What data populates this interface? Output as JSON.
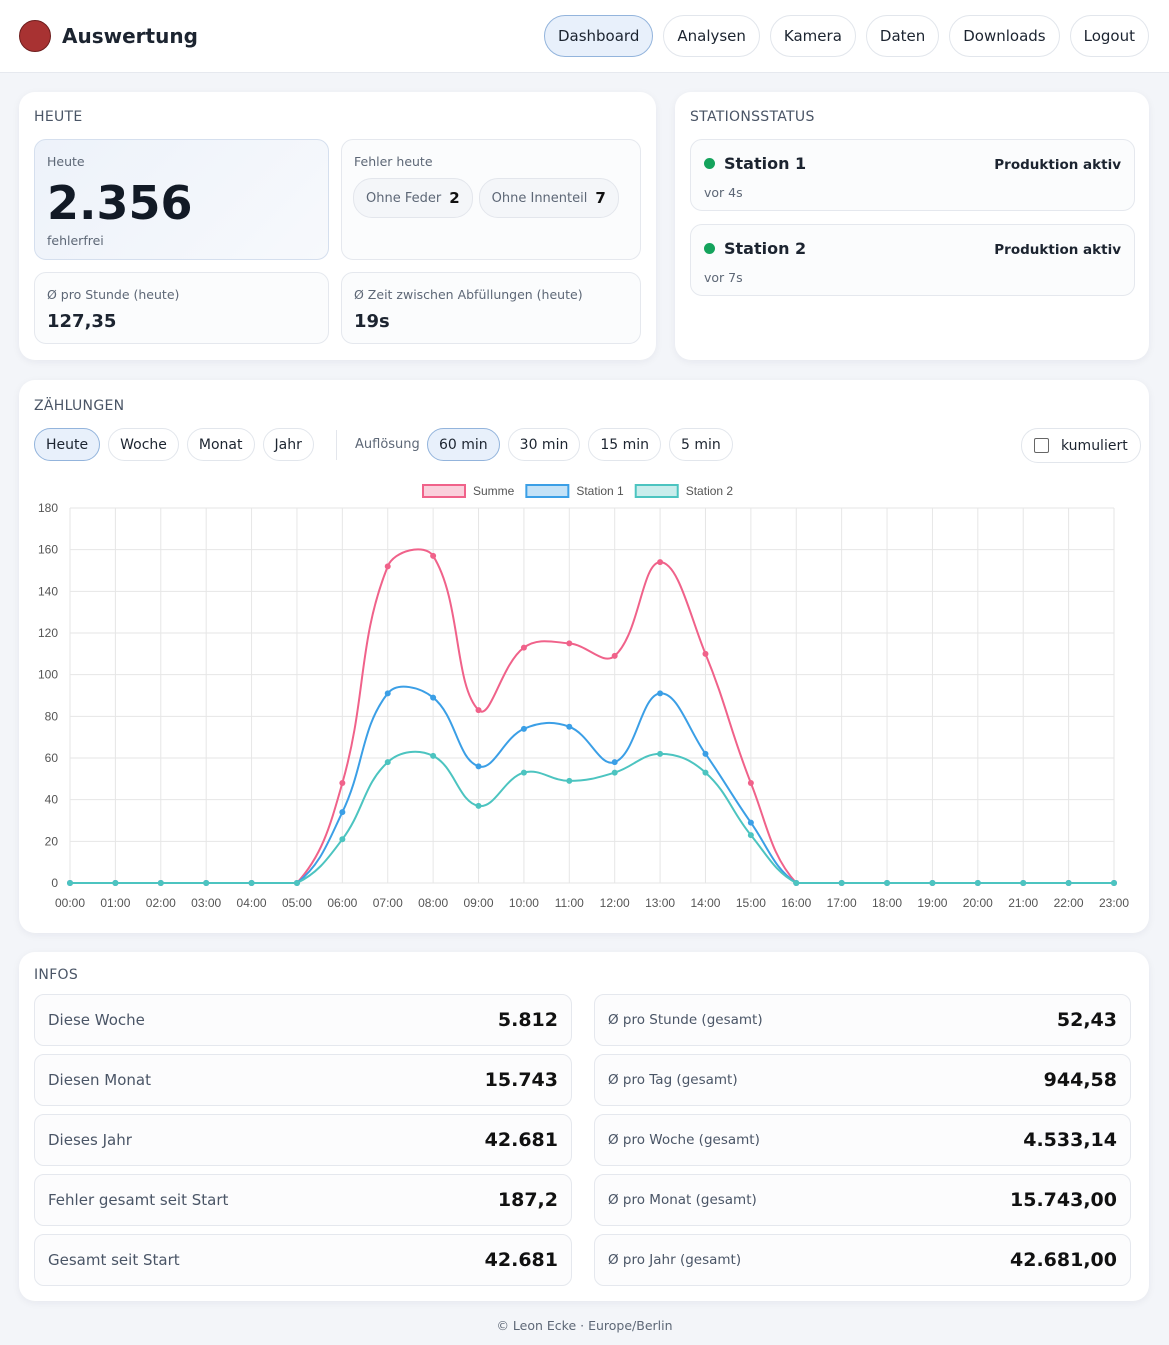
{
  "header": {
    "brand": "Auswertung",
    "nav": [
      "Dashboard",
      "Analysen",
      "Kamera",
      "Daten",
      "Downloads",
      "Logout"
    ]
  },
  "today": {
    "title": "HEUTE",
    "main": {
      "label": "Heute",
      "value": "2.356",
      "sub": "fehlerfrei"
    },
    "errors": {
      "label": "Fehler heute",
      "items": [
        {
          "name": "Ohne Feder",
          "count": 2
        },
        {
          "name": "Ohne Innenteil",
          "count": 7
        }
      ]
    },
    "per_hour": {
      "label": "Ø pro Stunde (heute)",
      "value": "127,35"
    },
    "interval": {
      "label": "Ø Zeit zwischen Abfüllungen (heute)",
      "value": "19s"
    }
  },
  "stations": {
    "title": "STATIONSSTATUS",
    "items": [
      {
        "name": "Station 1",
        "status": "Produktion aktiv",
        "seen": "vor 4s"
      },
      {
        "name": "Station 2",
        "status": "Produktion aktiv",
        "seen": "vor 7s"
      }
    ]
  },
  "counts": {
    "title": "ZÄHLUNGEN",
    "ranges": [
      "Heute",
      "Woche",
      "Monat",
      "Jahr"
    ],
    "resolution_label": "Auflösung",
    "resolutions": [
      "60 min",
      "30 min",
      "15 min",
      "5 min"
    ],
    "cumulative_label": "kumuliert"
  },
  "chart_data": {
    "type": "line",
    "categories": [
      "00:00",
      "01:00",
      "02:00",
      "03:00",
      "04:00",
      "05:00",
      "06:00",
      "07:00",
      "08:00",
      "09:00",
      "10:00",
      "11:00",
      "12:00",
      "13:00",
      "14:00",
      "15:00",
      "16:00",
      "17:00",
      "18:00",
      "19:00",
      "20:00",
      "21:00",
      "22:00",
      "23:00"
    ],
    "series": [
      {
        "name": "Summe",
        "color": "#f0628a",
        "values": [
          0,
          0,
          0,
          0,
          0,
          0,
          48,
          152,
          157,
          83,
          113,
          115,
          109,
          154,
          110,
          48,
          0,
          0,
          0,
          0,
          0,
          0,
          0,
          0
        ]
      },
      {
        "name": "Station 1",
        "color": "#3b9fe6",
        "values": [
          0,
          0,
          0,
          0,
          0,
          0,
          34,
          91,
          89,
          56,
          74,
          75,
          58,
          91,
          62,
          29,
          0,
          0,
          0,
          0,
          0,
          0,
          0,
          0
        ]
      },
      {
        "name": "Station 2",
        "color": "#4cc4c0",
        "values": [
          0,
          0,
          0,
          0,
          0,
          0,
          21,
          58,
          61,
          37,
          53,
          49,
          53,
          62,
          53,
          23,
          0,
          0,
          0,
          0,
          0,
          0,
          0,
          0
        ]
      }
    ],
    "ylim": [
      0,
      180
    ],
    "yticks": [
      0,
      20,
      40,
      60,
      80,
      100,
      120,
      140,
      160,
      180
    ],
    "grid": true
  },
  "infos": {
    "title": "INFOS",
    "left": [
      {
        "label": "Diese Woche",
        "value": "5.812"
      },
      {
        "label": "Diesen Monat",
        "value": "15.743"
      },
      {
        "label": "Dieses Jahr",
        "value": "42.681"
      },
      {
        "label": "Fehler gesamt seit Start",
        "value": "187,2"
      },
      {
        "label": "Gesamt seit Start",
        "value": "42.681"
      }
    ],
    "right": [
      {
        "label": "Ø pro Stunde (gesamt)",
        "value": "52,43"
      },
      {
        "label": "Ø pro Tag (gesamt)",
        "value": "944,58"
      },
      {
        "label": "Ø pro Woche (gesamt)",
        "value": "4.533,14"
      },
      {
        "label": "Ø pro Monat (gesamt)",
        "value": "15.743,00"
      },
      {
        "label": "Ø pro Jahr (gesamt)",
        "value": "42.681,00"
      }
    ]
  },
  "footer": "© Leon Ecke · Europe/Berlin"
}
